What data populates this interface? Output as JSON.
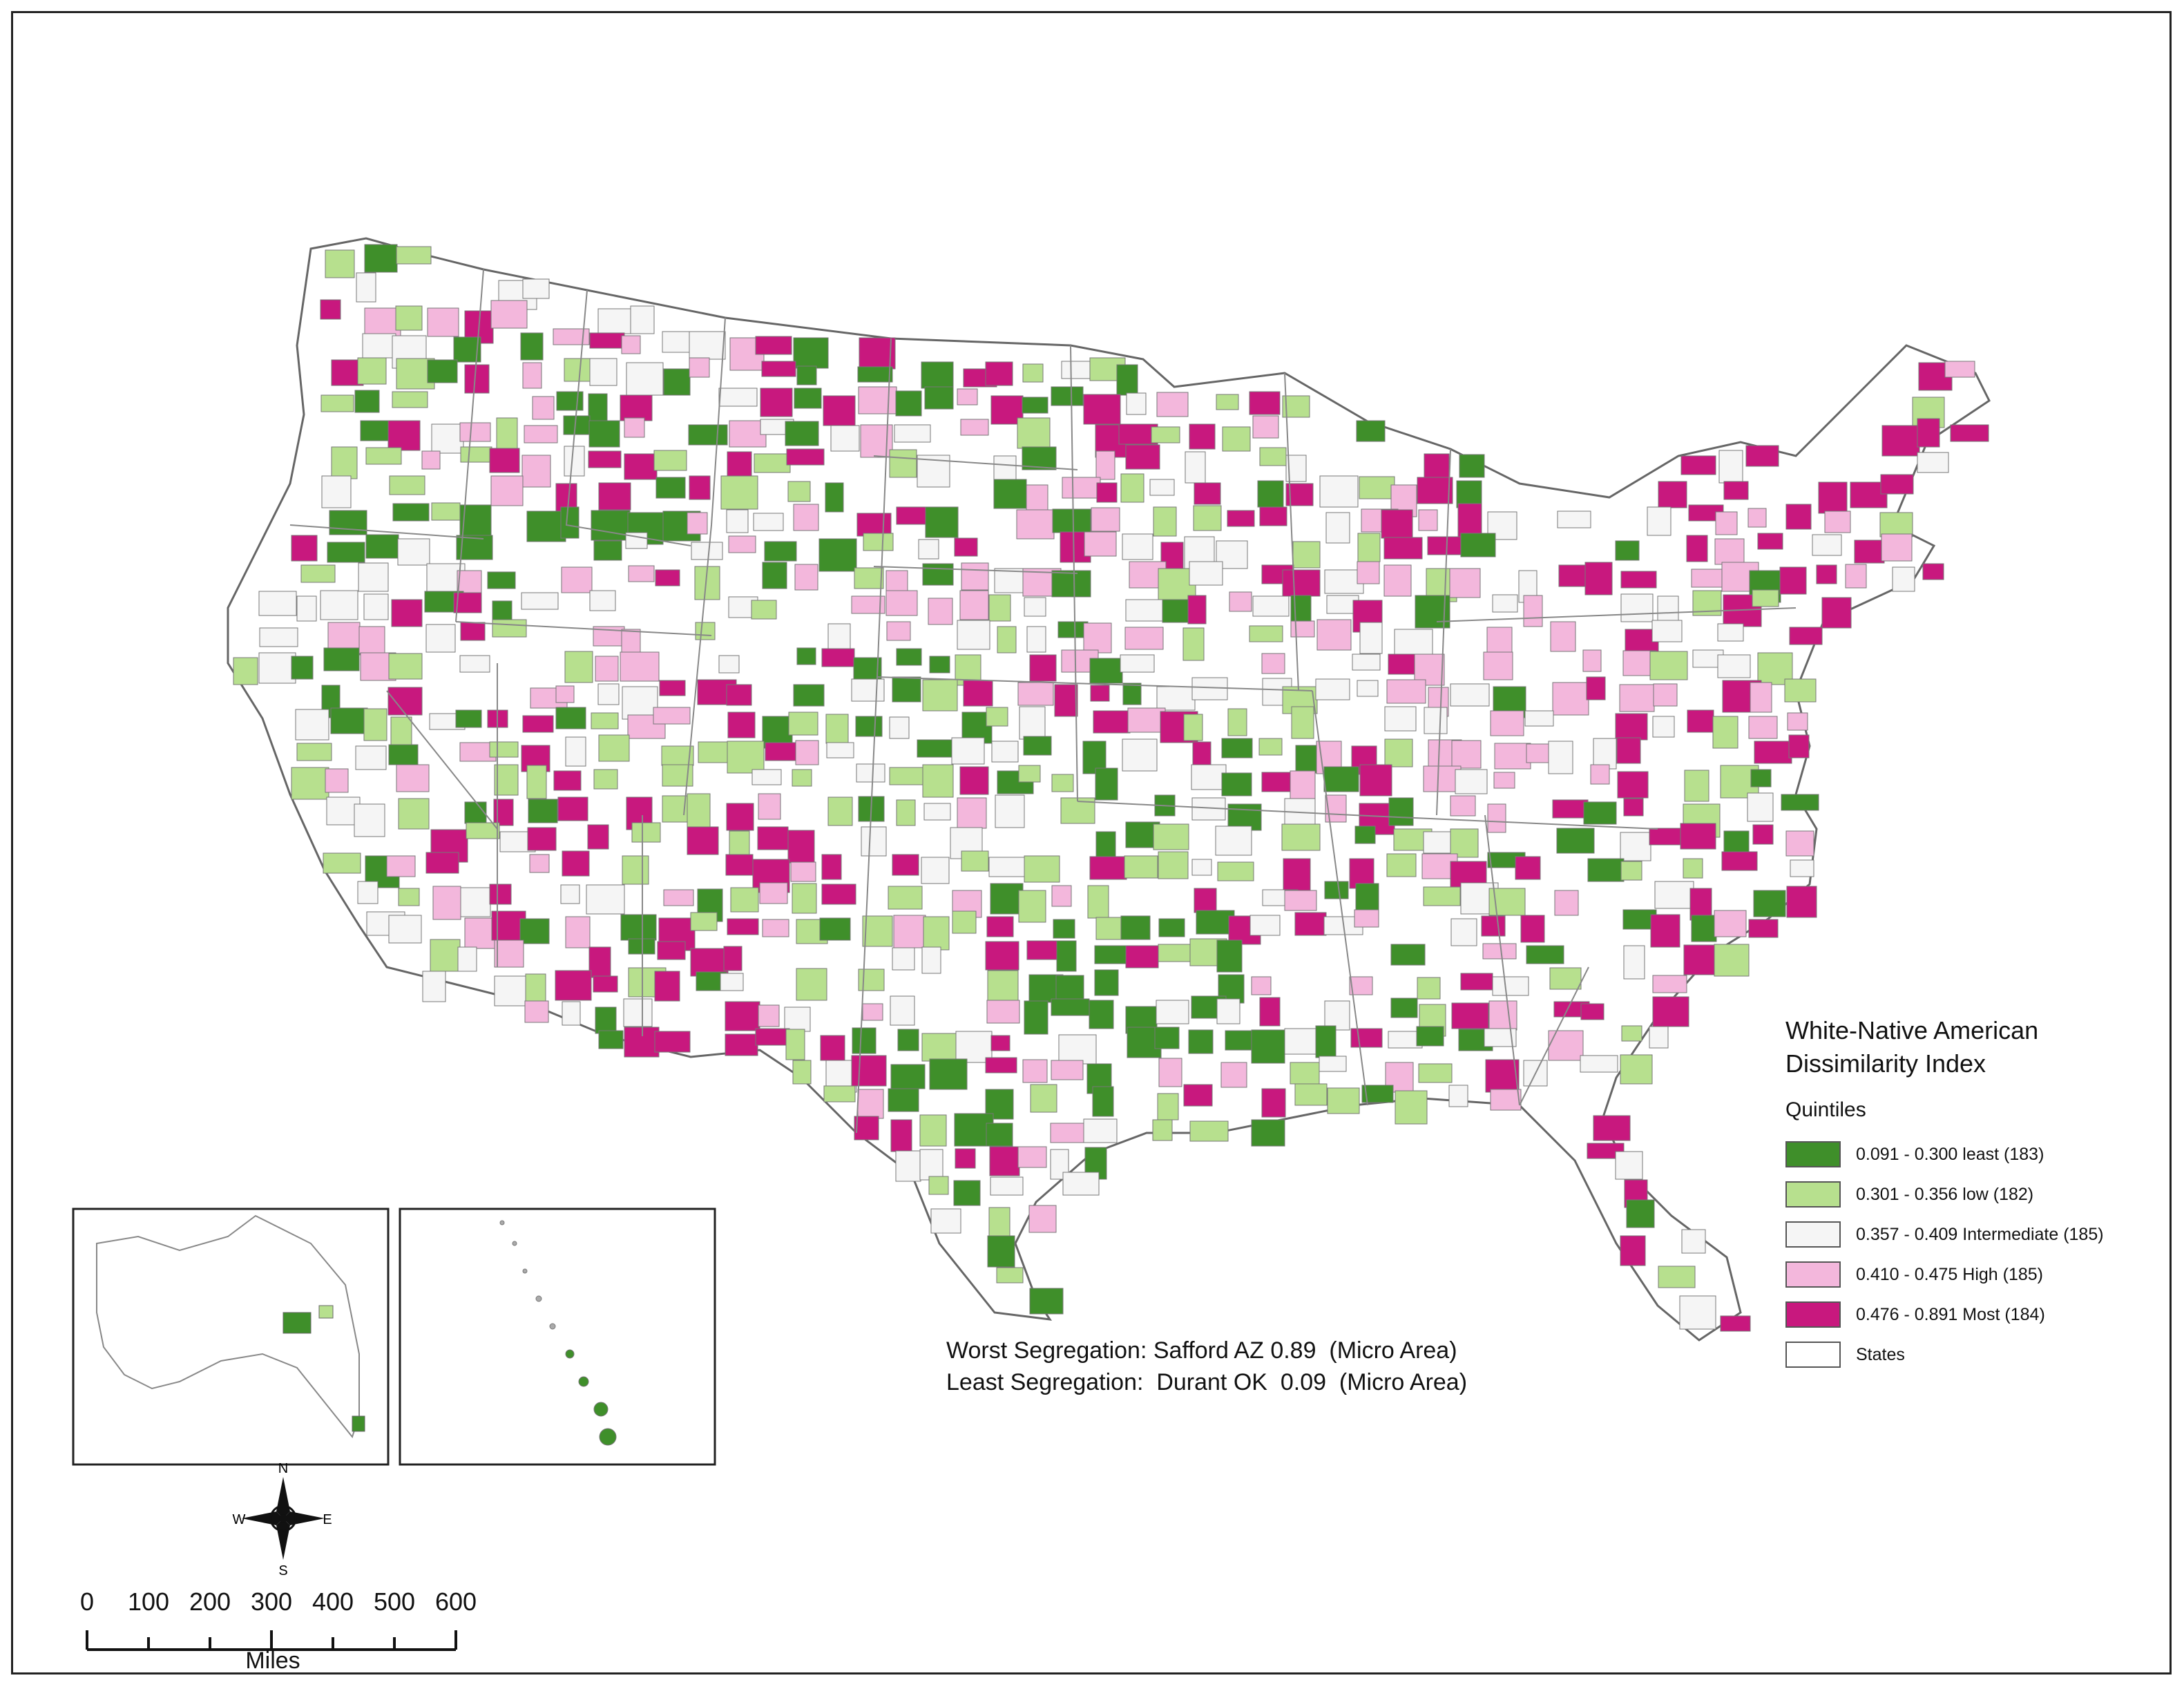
{
  "legend": {
    "title_line1": "White-Native American",
    "title_line2": "Dissimilarity Index",
    "subtitle": "Quintiles",
    "items": [
      {
        "label": "0.091 - 0.300  least (183)",
        "color": "#3f8f2a"
      },
      {
        "label": "0.301 - 0.356  low (182)",
        "color": "#b7e08e"
      },
      {
        "label": "0.357 - 0.409  Intermediate (185)",
        "color": "#f5f5f5"
      },
      {
        "label": "0.410 - 0.475  High (185)",
        "color": "#f3b7dc"
      },
      {
        "label": "0.476 - 0.891  Most (184)",
        "color": "#c8187e"
      },
      {
        "label": "States",
        "color": "#ffffff"
      }
    ]
  },
  "annotations": {
    "worst": "Worst Segregation: Safford AZ 0.89  (Micro Area)",
    "least": "Least Segregation:  Durant OK  0.09  (Micro Area)"
  },
  "compass": {
    "n": "N",
    "s": "S",
    "e": "E",
    "w": "W"
  },
  "scale_bar": {
    "ticks": [
      "0",
      "100",
      "200",
      "300",
      "400",
      "500",
      "600"
    ],
    "unit": "Miles"
  }
}
